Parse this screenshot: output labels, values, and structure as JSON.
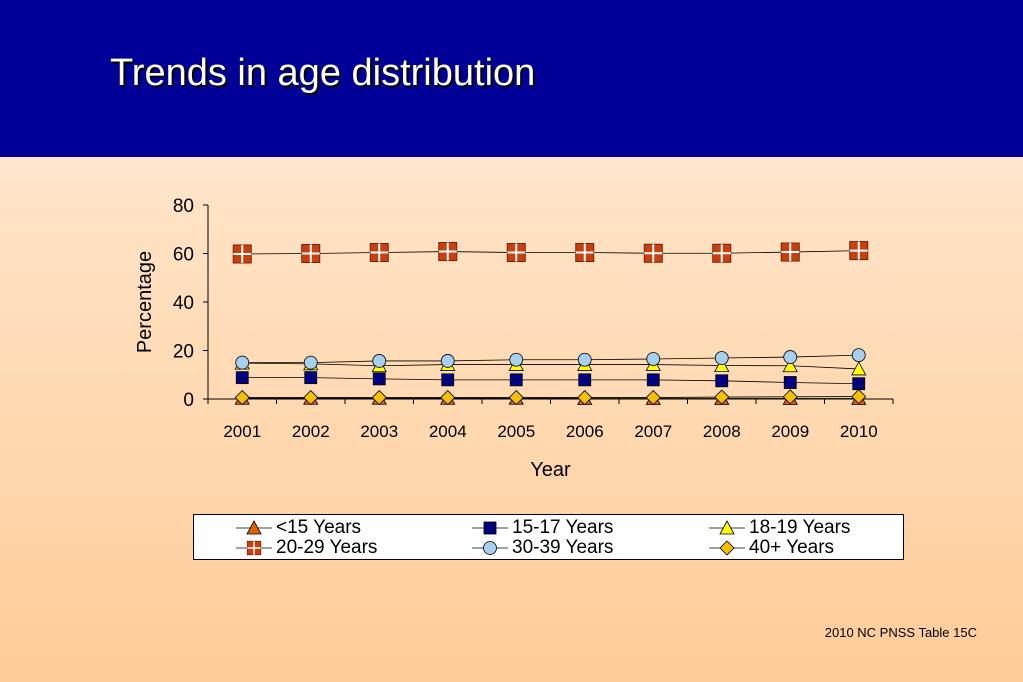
{
  "slide": {
    "title": "Trends in age distribution",
    "source": "2010 NC PNSS Table 15C"
  },
  "colors": {
    "header_bg": "#000099",
    "title_text": "#ffffff"
  },
  "chart_data": {
    "type": "line",
    "title": "",
    "xlabel": "Year",
    "ylabel": "Percentage",
    "ylim": [
      0,
      80
    ],
    "yticks": [
      0,
      20,
      40,
      60,
      80
    ],
    "grid": false,
    "legend_position": "bottom",
    "categories": [
      "2001",
      "2002",
      "2003",
      "2004",
      "2005",
      "2006",
      "2007",
      "2008",
      "2009",
      "2010"
    ],
    "series": [
      {
        "name": "<15 Years",
        "marker": "triangle",
        "color": "#e06000",
        "values": [
          0.3,
          0.3,
          0.3,
          0.3,
          0.3,
          0.2,
          0.2,
          0.2,
          0.2,
          0.2
        ]
      },
      {
        "name": "15-17 Years",
        "marker": "square",
        "color": "#000080",
        "values": [
          8.8,
          8.8,
          8.3,
          7.9,
          7.9,
          7.9,
          7.9,
          7.5,
          6.8,
          6.3
        ]
      },
      {
        "name": "18-19 Years",
        "marker": "triangle",
        "color": "#ffff00",
        "values": [
          14.8,
          14.5,
          13.7,
          14.2,
          14.2,
          14.2,
          14.2,
          13.8,
          13.7,
          12.4
        ]
      },
      {
        "name": "20-29 Years",
        "marker": "cross-square",
        "color": "#c84010",
        "values": [
          59.8,
          60.0,
          60.4,
          60.8,
          60.4,
          60.4,
          60.1,
          60.1,
          60.6,
          61.2
        ]
      },
      {
        "name": "30-39 Years",
        "marker": "circle",
        "color": "#a6cff0",
        "values": [
          15.0,
          15.0,
          15.7,
          15.7,
          16.2,
          16.2,
          16.5,
          16.9,
          17.3,
          18.1
        ]
      },
      {
        "name": "40+ Years",
        "marker": "diamond",
        "color": "#f5c000",
        "values": [
          0.6,
          0.6,
          0.6,
          0.6,
          0.6,
          0.6,
          0.6,
          0.8,
          0.9,
          1.0
        ]
      }
    ]
  }
}
